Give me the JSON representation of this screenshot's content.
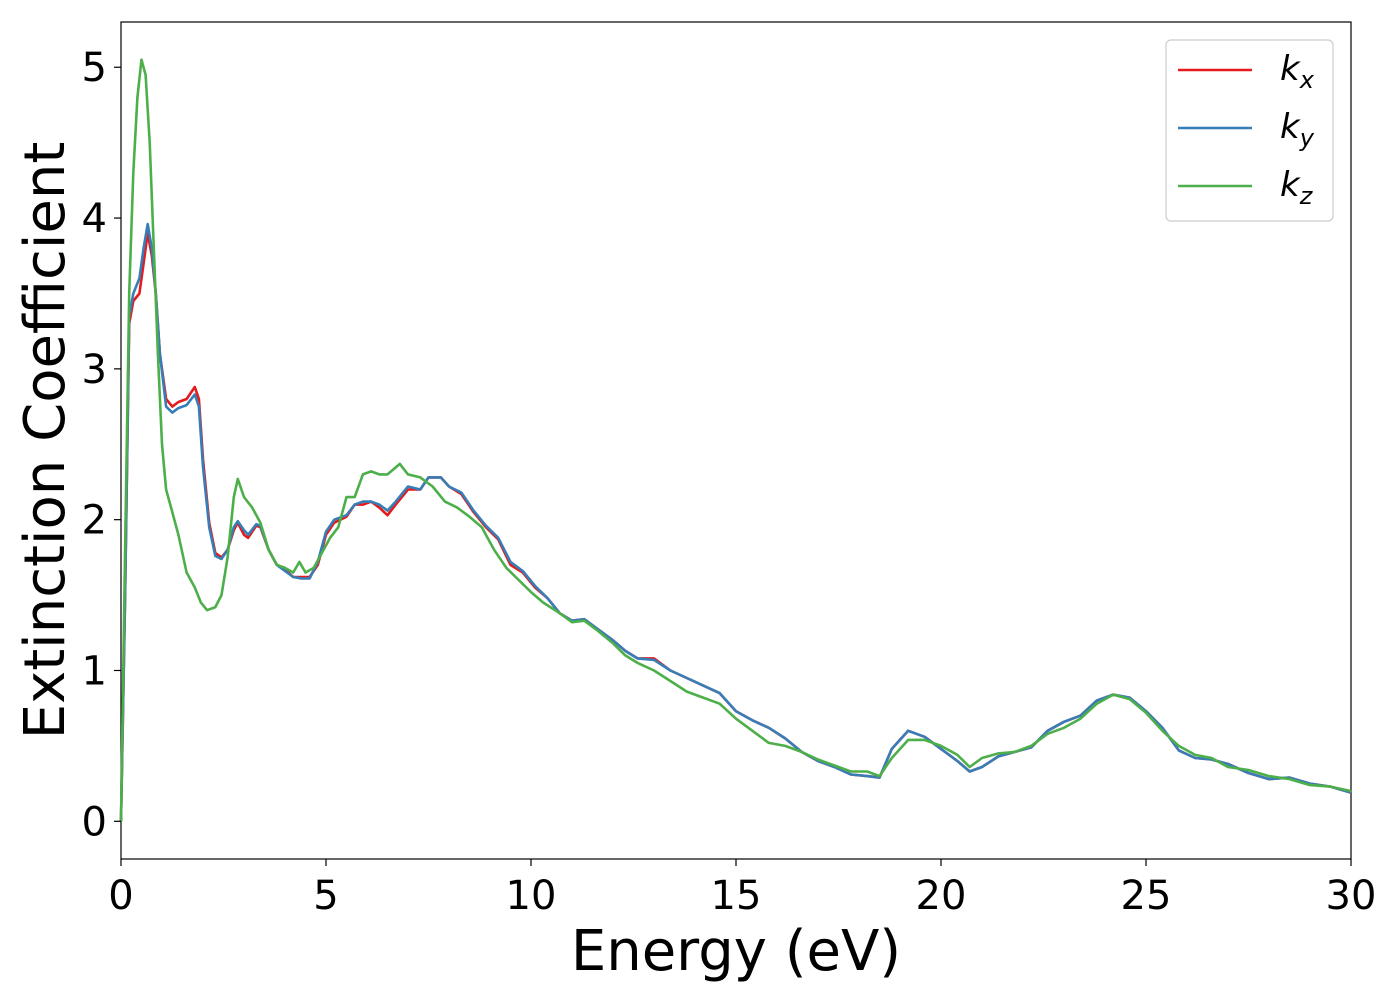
{
  "chart_data": {
    "type": "line",
    "xlabel": "Energy (eV)",
    "ylabel": "Extinction Coefficient",
    "xlim": [
      0,
      30
    ],
    "ylim": [
      -0.25,
      5.3
    ],
    "xticks": [
      0,
      5,
      10,
      15,
      20,
      25,
      30
    ],
    "xtick_labels": [
      "0",
      "5",
      "10",
      "15",
      "20",
      "25",
      "30"
    ],
    "yticks": [
      0,
      1,
      2,
      3,
      4,
      5
    ],
    "ytick_labels": [
      "0",
      "1",
      "2",
      "3",
      "4",
      "5"
    ],
    "grid": false,
    "legend_position": "top-right",
    "series": [
      {
        "name": "k",
        "sub": "x",
        "color": "#e41a1c",
        "points": [
          [
            0,
            0
          ],
          [
            0.1,
            1.5
          ],
          [
            0.2,
            3.3
          ],
          [
            0.3,
            3.45
          ],
          [
            0.45,
            3.5
          ],
          [
            0.55,
            3.7
          ],
          [
            0.65,
            3.9
          ],
          [
            0.75,
            3.75
          ],
          [
            0.85,
            3.5
          ],
          [
            0.95,
            3.1
          ],
          [
            1.1,
            2.8
          ],
          [
            1.25,
            2.75
          ],
          [
            1.4,
            2.78
          ],
          [
            1.6,
            2.8
          ],
          [
            1.8,
            2.88
          ],
          [
            1.9,
            2.8
          ],
          [
            2.0,
            2.4
          ],
          [
            2.15,
            1.98
          ],
          [
            2.3,
            1.78
          ],
          [
            2.45,
            1.75
          ],
          [
            2.6,
            1.8
          ],
          [
            2.75,
            1.93
          ],
          [
            2.85,
            1.98
          ],
          [
            3.0,
            1.9
          ],
          [
            3.1,
            1.88
          ],
          [
            3.3,
            1.96
          ],
          [
            3.4,
            1.95
          ],
          [
            3.6,
            1.8
          ],
          [
            3.8,
            1.7
          ],
          [
            4.0,
            1.67
          ],
          [
            4.2,
            1.62
          ],
          [
            4.4,
            1.62
          ],
          [
            4.6,
            1.62
          ],
          [
            4.8,
            1.7
          ],
          [
            5.0,
            1.9
          ],
          [
            5.2,
            1.98
          ],
          [
            5.5,
            2.02
          ],
          [
            5.7,
            2.1
          ],
          [
            5.9,
            2.1
          ],
          [
            6.1,
            2.12
          ],
          [
            6.3,
            2.08
          ],
          [
            6.5,
            2.03
          ],
          [
            6.7,
            2.1
          ],
          [
            7.0,
            2.2
          ],
          [
            7.3,
            2.2
          ],
          [
            7.5,
            2.28
          ],
          [
            7.8,
            2.28
          ],
          [
            8.0,
            2.22
          ],
          [
            8.3,
            2.17
          ],
          [
            8.6,
            2.05
          ],
          [
            8.9,
            1.95
          ],
          [
            9.2,
            1.87
          ],
          [
            9.5,
            1.7
          ],
          [
            9.8,
            1.65
          ],
          [
            10.1,
            1.55
          ],
          [
            10.4,
            1.48
          ],
          [
            10.7,
            1.38
          ],
          [
            11.0,
            1.33
          ],
          [
            11.3,
            1.34
          ],
          [
            11.6,
            1.28
          ],
          [
            12.0,
            1.2
          ],
          [
            12.3,
            1.13
          ],
          [
            12.6,
            1.08
          ],
          [
            13.0,
            1.08
          ],
          [
            13.4,
            1.0
          ],
          [
            13.8,
            0.95
          ],
          [
            14.2,
            0.9
          ],
          [
            14.6,
            0.85
          ],
          [
            15.0,
            0.73
          ],
          [
            15.4,
            0.67
          ],
          [
            15.8,
            0.62
          ],
          [
            16.2,
            0.55
          ],
          [
            16.6,
            0.46
          ],
          [
            17.0,
            0.4
          ],
          [
            17.4,
            0.36
          ],
          [
            17.8,
            0.31
          ],
          [
            18.2,
            0.3
          ],
          [
            18.5,
            0.29
          ],
          [
            18.8,
            0.48
          ],
          [
            19.2,
            0.6
          ],
          [
            19.6,
            0.56
          ],
          [
            20.0,
            0.48
          ],
          [
            20.4,
            0.4
          ],
          [
            20.7,
            0.33
          ],
          [
            21.0,
            0.36
          ],
          [
            21.4,
            0.43
          ],
          [
            21.8,
            0.46
          ],
          [
            22.2,
            0.49
          ],
          [
            22.6,
            0.6
          ],
          [
            23.0,
            0.66
          ],
          [
            23.4,
            0.7
          ],
          [
            23.8,
            0.8
          ],
          [
            24.2,
            0.84
          ],
          [
            24.6,
            0.82
          ],
          [
            25.0,
            0.73
          ],
          [
            25.4,
            0.62
          ],
          [
            25.8,
            0.47
          ],
          [
            26.2,
            0.42
          ],
          [
            26.6,
            0.41
          ],
          [
            27.0,
            0.38
          ],
          [
            27.5,
            0.32
          ],
          [
            28.0,
            0.28
          ],
          [
            28.5,
            0.29
          ],
          [
            29.0,
            0.25
          ],
          [
            29.5,
            0.23
          ],
          [
            30.0,
            0.19
          ]
        ]
      },
      {
        "name": "k",
        "sub": "y",
        "color": "#377eb8",
        "points": [
          [
            0,
            0
          ],
          [
            0.1,
            1.5
          ],
          [
            0.2,
            3.35
          ],
          [
            0.3,
            3.5
          ],
          [
            0.45,
            3.6
          ],
          [
            0.55,
            3.8
          ],
          [
            0.65,
            3.96
          ],
          [
            0.75,
            3.8
          ],
          [
            0.85,
            3.5
          ],
          [
            0.95,
            3.1
          ],
          [
            1.1,
            2.75
          ],
          [
            1.25,
            2.71
          ],
          [
            1.4,
            2.74
          ],
          [
            1.6,
            2.76
          ],
          [
            1.8,
            2.83
          ],
          [
            1.9,
            2.75
          ],
          [
            2.0,
            2.35
          ],
          [
            2.15,
            1.95
          ],
          [
            2.3,
            1.76
          ],
          [
            2.45,
            1.74
          ],
          [
            2.6,
            1.8
          ],
          [
            2.75,
            1.95
          ],
          [
            2.85,
            1.99
          ],
          [
            3.0,
            1.93
          ],
          [
            3.1,
            1.9
          ],
          [
            3.3,
            1.97
          ],
          [
            3.4,
            1.96
          ],
          [
            3.6,
            1.8
          ],
          [
            3.8,
            1.7
          ],
          [
            4.0,
            1.66
          ],
          [
            4.2,
            1.62
          ],
          [
            4.4,
            1.61
          ],
          [
            4.6,
            1.61
          ],
          [
            4.8,
            1.72
          ],
          [
            5.0,
            1.92
          ],
          [
            5.2,
            2.0
          ],
          [
            5.5,
            2.03
          ],
          [
            5.7,
            2.1
          ],
          [
            5.9,
            2.12
          ],
          [
            6.1,
            2.12
          ],
          [
            6.3,
            2.1
          ],
          [
            6.5,
            2.06
          ],
          [
            6.7,
            2.12
          ],
          [
            7.0,
            2.22
          ],
          [
            7.3,
            2.2
          ],
          [
            7.5,
            2.28
          ],
          [
            7.8,
            2.28
          ],
          [
            8.0,
            2.22
          ],
          [
            8.3,
            2.18
          ],
          [
            8.6,
            2.06
          ],
          [
            8.9,
            1.96
          ],
          [
            9.2,
            1.88
          ],
          [
            9.5,
            1.72
          ],
          [
            9.8,
            1.66
          ],
          [
            10.1,
            1.56
          ],
          [
            10.4,
            1.48
          ],
          [
            10.7,
            1.38
          ],
          [
            11.0,
            1.33
          ],
          [
            11.3,
            1.34
          ],
          [
            11.6,
            1.28
          ],
          [
            12.0,
            1.2
          ],
          [
            12.3,
            1.13
          ],
          [
            12.6,
            1.08
          ],
          [
            13.0,
            1.07
          ],
          [
            13.4,
            1.0
          ],
          [
            13.8,
            0.95
          ],
          [
            14.2,
            0.9
          ],
          [
            14.6,
            0.85
          ],
          [
            15.0,
            0.73
          ],
          [
            15.4,
            0.67
          ],
          [
            15.8,
            0.62
          ],
          [
            16.2,
            0.55
          ],
          [
            16.6,
            0.46
          ],
          [
            17.0,
            0.4
          ],
          [
            17.4,
            0.36
          ],
          [
            17.8,
            0.31
          ],
          [
            18.2,
            0.3
          ],
          [
            18.5,
            0.29
          ],
          [
            18.8,
            0.48
          ],
          [
            19.2,
            0.6
          ],
          [
            19.6,
            0.56
          ],
          [
            20.0,
            0.48
          ],
          [
            20.4,
            0.4
          ],
          [
            20.7,
            0.33
          ],
          [
            21.0,
            0.36
          ],
          [
            21.4,
            0.43
          ],
          [
            21.8,
            0.46
          ],
          [
            22.2,
            0.49
          ],
          [
            22.6,
            0.6
          ],
          [
            23.0,
            0.66
          ],
          [
            23.4,
            0.7
          ],
          [
            23.8,
            0.8
          ],
          [
            24.2,
            0.84
          ],
          [
            24.6,
            0.82
          ],
          [
            25.0,
            0.73
          ],
          [
            25.4,
            0.62
          ],
          [
            25.8,
            0.47
          ],
          [
            26.2,
            0.42
          ],
          [
            26.6,
            0.41
          ],
          [
            27.0,
            0.38
          ],
          [
            27.5,
            0.32
          ],
          [
            28.0,
            0.28
          ],
          [
            28.5,
            0.29
          ],
          [
            29.0,
            0.25
          ],
          [
            29.5,
            0.23
          ],
          [
            30.0,
            0.19
          ]
        ]
      },
      {
        "name": "k",
        "sub": "z",
        "color": "#4daf4a",
        "points": [
          [
            0,
            0
          ],
          [
            0.1,
            1.8
          ],
          [
            0.2,
            3.5
          ],
          [
            0.3,
            4.3
          ],
          [
            0.4,
            4.8
          ],
          [
            0.5,
            5.05
          ],
          [
            0.6,
            4.95
          ],
          [
            0.7,
            4.5
          ],
          [
            0.8,
            3.8
          ],
          [
            0.9,
            3.1
          ],
          [
            1.0,
            2.5
          ],
          [
            1.1,
            2.2
          ],
          [
            1.25,
            2.05
          ],
          [
            1.4,
            1.9
          ],
          [
            1.6,
            1.65
          ],
          [
            1.8,
            1.55
          ],
          [
            1.95,
            1.45
          ],
          [
            2.1,
            1.4
          ],
          [
            2.3,
            1.42
          ],
          [
            2.45,
            1.5
          ],
          [
            2.6,
            1.75
          ],
          [
            2.75,
            2.15
          ],
          [
            2.85,
            2.27
          ],
          [
            3.0,
            2.15
          ],
          [
            3.2,
            2.08
          ],
          [
            3.4,
            1.98
          ],
          [
            3.6,
            1.8
          ],
          [
            3.8,
            1.7
          ],
          [
            4.0,
            1.68
          ],
          [
            4.2,
            1.65
          ],
          [
            4.35,
            1.72
          ],
          [
            4.5,
            1.65
          ],
          [
            4.7,
            1.68
          ],
          [
            4.9,
            1.78
          ],
          [
            5.1,
            1.88
          ],
          [
            5.3,
            1.95
          ],
          [
            5.5,
            2.15
          ],
          [
            5.7,
            2.15
          ],
          [
            5.9,
            2.3
          ],
          [
            6.1,
            2.32
          ],
          [
            6.3,
            2.3
          ],
          [
            6.5,
            2.3
          ],
          [
            6.8,
            2.37
          ],
          [
            7.0,
            2.3
          ],
          [
            7.3,
            2.28
          ],
          [
            7.6,
            2.22
          ],
          [
            7.9,
            2.12
          ],
          [
            8.2,
            2.08
          ],
          [
            8.5,
            2.02
          ],
          [
            8.8,
            1.95
          ],
          [
            9.1,
            1.8
          ],
          [
            9.4,
            1.68
          ],
          [
            9.7,
            1.6
          ],
          [
            10.0,
            1.52
          ],
          [
            10.3,
            1.45
          ],
          [
            10.7,
            1.38
          ],
          [
            11.0,
            1.32
          ],
          [
            11.3,
            1.33
          ],
          [
            11.6,
            1.27
          ],
          [
            12.0,
            1.18
          ],
          [
            12.3,
            1.1
          ],
          [
            12.6,
            1.05
          ],
          [
            13.0,
            1.0
          ],
          [
            13.4,
            0.93
          ],
          [
            13.8,
            0.86
          ],
          [
            14.2,
            0.82
          ],
          [
            14.6,
            0.78
          ],
          [
            15.0,
            0.68
          ],
          [
            15.4,
            0.6
          ],
          [
            15.8,
            0.52
          ],
          [
            16.2,
            0.5
          ],
          [
            16.6,
            0.46
          ],
          [
            17.0,
            0.41
          ],
          [
            17.4,
            0.37
          ],
          [
            17.8,
            0.33
          ],
          [
            18.2,
            0.33
          ],
          [
            18.5,
            0.3
          ],
          [
            18.8,
            0.42
          ],
          [
            19.2,
            0.54
          ],
          [
            19.6,
            0.54
          ],
          [
            20.0,
            0.5
          ],
          [
            20.4,
            0.44
          ],
          [
            20.7,
            0.36
          ],
          [
            21.0,
            0.42
          ],
          [
            21.4,
            0.45
          ],
          [
            21.8,
            0.46
          ],
          [
            22.2,
            0.5
          ],
          [
            22.6,
            0.58
          ],
          [
            23.0,
            0.62
          ],
          [
            23.4,
            0.68
          ],
          [
            23.8,
            0.78
          ],
          [
            24.2,
            0.84
          ],
          [
            24.6,
            0.81
          ],
          [
            25.0,
            0.72
          ],
          [
            25.4,
            0.6
          ],
          [
            25.8,
            0.5
          ],
          [
            26.2,
            0.44
          ],
          [
            26.6,
            0.42
          ],
          [
            27.0,
            0.36
          ],
          [
            27.5,
            0.34
          ],
          [
            28.0,
            0.3
          ],
          [
            28.5,
            0.28
          ],
          [
            29.0,
            0.24
          ],
          [
            29.5,
            0.23
          ],
          [
            30.0,
            0.2
          ]
        ]
      }
    ]
  }
}
